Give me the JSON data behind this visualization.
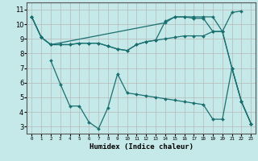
{
  "xlabel": "Humidex (Indice chaleur)",
  "bg_color": "#c5e8e8",
  "grid_color": "#b0b0b0",
  "line_color": "#1a7070",
  "xlim": [
    -0.5,
    23.5
  ],
  "ylim": [
    2.5,
    11.5
  ],
  "yticks": [
    3,
    4,
    5,
    6,
    7,
    8,
    9,
    10,
    11
  ],
  "xtick_labels": [
    "0",
    "1",
    "2",
    "3",
    "4",
    "5",
    "6",
    "7",
    "8",
    "9",
    "10",
    "11",
    "12",
    "13",
    "14",
    "15",
    "16",
    "17",
    "18",
    "19",
    "20",
    "21",
    "22",
    "23"
  ],
  "series": [
    {
      "x": [
        0,
        1,
        2,
        14,
        15,
        16,
        17,
        18,
        19,
        20,
        21,
        22
      ],
      "y": [
        10.5,
        9.1,
        8.6,
        10.1,
        10.5,
        10.5,
        10.5,
        10.5,
        10.5,
        9.5,
        10.8,
        10.9
      ]
    },
    {
      "x": [
        0,
        1,
        2,
        3,
        4,
        5,
        6,
        7,
        8,
        9,
        10,
        11,
        12,
        13,
        14,
        15,
        16,
        17,
        18,
        19,
        20,
        21,
        22,
        23
      ],
      "y": [
        10.5,
        9.1,
        8.6,
        8.6,
        8.6,
        8.7,
        8.7,
        8.7,
        8.5,
        8.3,
        8.2,
        8.6,
        8.8,
        8.9,
        9.0,
        9.1,
        9.2,
        9.2,
        9.2,
        9.5,
        9.5,
        7.0,
        4.7,
        3.2
      ]
    },
    {
      "x": [
        0,
        1,
        2,
        3,
        4,
        5,
        6,
        7,
        8,
        9,
        10,
        11,
        12,
        13,
        14,
        15,
        16,
        17,
        18,
        19,
        20,
        21,
        22,
        23
      ],
      "y": [
        10.5,
        9.1,
        8.6,
        8.6,
        8.6,
        8.7,
        8.7,
        8.7,
        8.5,
        8.3,
        8.2,
        8.6,
        8.8,
        8.9,
        10.2,
        10.5,
        10.5,
        10.4,
        10.4,
        9.5,
        9.5,
        7.0,
        4.7,
        3.2
      ]
    },
    {
      "x": [
        2,
        3,
        4,
        5,
        6,
        7,
        8,
        9,
        10,
        11,
        12,
        13,
        14,
        15,
        16,
        17,
        18,
        19,
        20,
        21,
        22,
        23
      ],
      "y": [
        7.5,
        5.9,
        4.4,
        4.4,
        3.3,
        2.85,
        4.3,
        6.6,
        5.3,
        5.2,
        5.1,
        5.0,
        4.9,
        4.8,
        4.7,
        4.6,
        4.5,
        3.5,
        3.5,
        7.0,
        4.7,
        3.2
      ]
    }
  ]
}
